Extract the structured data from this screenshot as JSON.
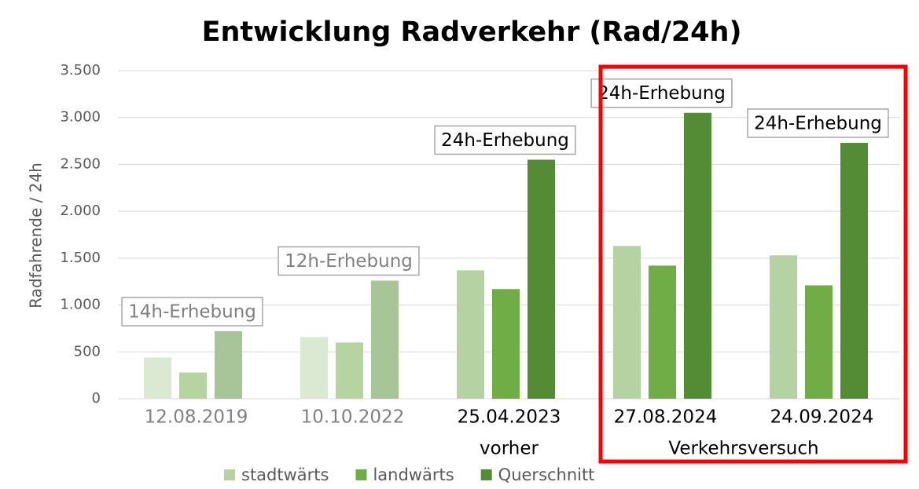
{
  "chart_data": {
    "type": "bar",
    "title": "Entwicklung Radverkehr (Rad/24h)",
    "y_label": "Radfahrende / 24h",
    "categories": [
      "12.08.2019",
      "10.10.2022",
      "25.04.2023",
      "27.08.2024",
      "24.09.2024"
    ],
    "category_colors": [
      "#808080",
      "#808080",
      "#000000",
      "#000000",
      "#000000"
    ],
    "series": [
      {
        "name": "stadtwärts",
        "color": "#b4d2a2",
        "point_colors": [
          "#dbe9d3",
          "#dbe9d3",
          "#b4d2a2",
          "#b4d2a2",
          "#b4d2a2"
        ],
        "values": [
          440,
          660,
          1370,
          1630,
          1530
        ]
      },
      {
        "name": "landwärts",
        "color": "#70ad47",
        "point_colors": [
          "#b5d4a0",
          "#b5d4a0",
          "#70ad47",
          "#70ad47",
          "#70ad47"
        ],
        "values": [
          280,
          600,
          1170,
          1420,
          1210
        ]
      },
      {
        "name": "Querschnitt",
        "color": "#548c36",
        "point_colors": [
          "#a8c598",
          "#a8c598",
          "#548c36",
          "#548c36",
          "#548c36"
        ],
        "values": [
          720,
          1260,
          2550,
          3050,
          2730
        ]
      }
    ],
    "annotations": [
      {
        "text": "14h-Erhebung",
        "category": 0,
        "color": "#808080"
      },
      {
        "text": "12h-Erhebung",
        "category": 1,
        "color": "#808080"
      },
      {
        "text": "24h-Erhebung",
        "category": 2,
        "color": "#000000"
      },
      {
        "text": "24h-Erhebung",
        "category": 3,
        "color": "#000000"
      },
      {
        "text": "24h-Erhebung",
        "category": 4,
        "color": "#000000"
      }
    ],
    "group_labels": [
      {
        "text": "vorher",
        "categories": [
          2
        ]
      },
      {
        "text": "Verkehrsversuch",
        "categories": [
          3,
          4
        ]
      }
    ],
    "highlight": {
      "categories": [
        3,
        4
      ],
      "color": "#ff0000"
    },
    "ylim": [
      0,
      3500
    ],
    "yticks": [
      0,
      500,
      {
        "value": 1000,
        "label": "1.000"
      },
      {
        "value": 1500,
        "label": "1.500"
      },
      {
        "value": 2000,
        "label": "2.000"
      },
      {
        "value": 2500,
        "label": "2.500"
      },
      {
        "value": 3000,
        "label": "3.000"
      },
      {
        "value": 3500,
        "label": "3.500"
      }
    ],
    "grid": true,
    "legend": "bottom"
  }
}
